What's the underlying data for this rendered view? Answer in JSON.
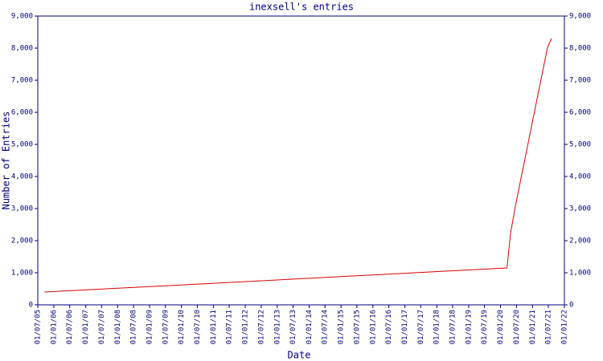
{
  "chart_data": {
    "type": "line",
    "title": "inexsell's entries",
    "x_label": "Date",
    "y_label": "Number of Entries",
    "x": [
      "2005-09-15",
      "2010-01-01",
      "2015-01-01",
      "2020-03-15",
      "2020-04-25",
      "2020-06-28",
      "2021-06-20",
      "2021-08-05"
    ],
    "series": [
      {
        "name": "entries",
        "color": "#dd0000",
        "values": [
          400,
          620,
          880,
          1150,
          2250,
          3200,
          8000,
          8300
        ]
      }
    ],
    "xlim": [
      "2005-07-01",
      "2022-01-01"
    ],
    "xticks": [
      {
        "value": "2005-07-01",
        "label": "01/07/05"
      },
      {
        "value": "2006-01-01",
        "label": "01/01/06"
      },
      {
        "value": "2006-07-01",
        "label": "01/07/06"
      },
      {
        "value": "2007-01-01",
        "label": "01/01/07"
      },
      {
        "value": "2007-07-01",
        "label": "01/07/07"
      },
      {
        "value": "2008-01-01",
        "label": "01/01/08"
      },
      {
        "value": "2008-07-01",
        "label": "01/07/08"
      },
      {
        "value": "2009-01-01",
        "label": "01/01/09"
      },
      {
        "value": "2009-07-01",
        "label": "01/07/09"
      },
      {
        "value": "2010-01-01",
        "label": "01/01/10"
      },
      {
        "value": "2010-07-01",
        "label": "01/07/10"
      },
      {
        "value": "2011-01-01",
        "label": "01/01/11"
      },
      {
        "value": "2011-07-01",
        "label": "01/07/11"
      },
      {
        "value": "2012-01-01",
        "label": "01/01/12"
      },
      {
        "value": "2012-07-01",
        "label": "01/07/12"
      },
      {
        "value": "2013-01-01",
        "label": "01/01/13"
      },
      {
        "value": "2013-07-01",
        "label": "01/07/13"
      },
      {
        "value": "2014-01-01",
        "label": "01/01/14"
      },
      {
        "value": "2014-07-01",
        "label": "01/07/14"
      },
      {
        "value": "2015-01-01",
        "label": "01/01/15"
      },
      {
        "value": "2015-07-01",
        "label": "01/07/15"
      },
      {
        "value": "2016-01-01",
        "label": "01/01/16"
      },
      {
        "value": "2016-07-01",
        "label": "01/07/16"
      },
      {
        "value": "2017-01-01",
        "label": "01/01/17"
      },
      {
        "value": "2017-07-01",
        "label": "01/07/17"
      },
      {
        "value": "2018-01-01",
        "label": "01/01/18"
      },
      {
        "value": "2018-07-01",
        "label": "01/07/18"
      },
      {
        "value": "2019-01-01",
        "label": "01/01/19"
      },
      {
        "value": "2019-07-01",
        "label": "01/07/19"
      },
      {
        "value": "2020-01-01",
        "label": "01/01/20"
      },
      {
        "value": "2020-07-01",
        "label": "01/07/20"
      },
      {
        "value": "2021-01-01",
        "label": "01/01/21"
      },
      {
        "value": "2021-07-01",
        "label": "01/07/21"
      },
      {
        "value": "2022-01-01",
        "label": "01/01/22"
      }
    ],
    "ylim": [
      0,
      9000
    ],
    "yticks": [
      0,
      {
        "value": 1000,
        "label": "1,000"
      },
      {
        "value": 2000,
        "label": "2,000"
      },
      {
        "value": 3000,
        "label": "3,000"
      },
      {
        "value": 4000,
        "label": "4,000"
      },
      {
        "value": 5000,
        "label": "5,000"
      },
      {
        "value": 6000,
        "label": "6,000"
      },
      {
        "value": 7000,
        "label": "7,000"
      },
      {
        "value": 8000,
        "label": "8,000"
      },
      {
        "value": 9000,
        "label": "9,000"
      }
    ],
    "axis_color": "#000080"
  }
}
